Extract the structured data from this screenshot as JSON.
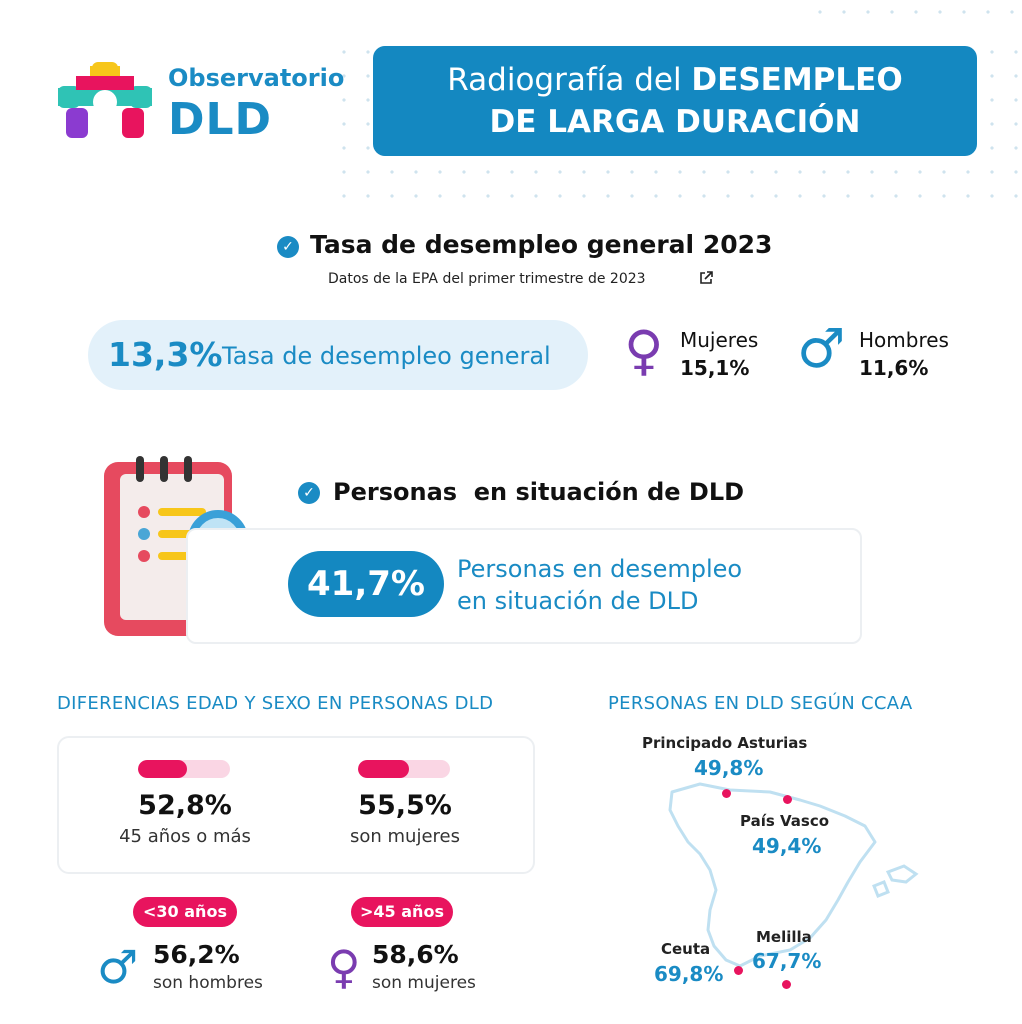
{
  "header": {
    "logo_line1": "Observatorio",
    "logo_line2": "DLD",
    "title_prefix": "Radiografía del ",
    "title_bold1": "DESEMPLEO",
    "title_line2": "DE LARGA DURACIÓN"
  },
  "general": {
    "heading": "Tasa de desempleo general 2023",
    "source": "Datos de la EPA del primer trimestre de 2023",
    "rate": "13,3%",
    "rate_label": "Tasa de desempleo general",
    "women_label": "Mujeres",
    "women_value": "15,1%",
    "men_label": "Hombres",
    "men_value": "11,6%"
  },
  "dld": {
    "heading": "Personas  en situación de DLD",
    "value": "41,7%",
    "label_line1": "Personas en desempleo",
    "label_line2": "en situación de DLD"
  },
  "age_sex": {
    "heading": "DIFERENCIAS EDAD Y SEXO EN PERSONAS DLD",
    "stats": [
      {
        "value": "52,8%",
        "label": "45 años o más",
        "fraction": 0.528
      },
      {
        "value": "55,5%",
        "label": "son mujeres",
        "fraction": 0.555
      }
    ],
    "groups": [
      {
        "tag": "<30 años",
        "value": "56,2%",
        "label": "son hombres",
        "icon": "male-icon"
      },
      {
        "tag": ">45 años",
        "value": "58,6%",
        "label": "son mujeres",
        "icon": "female-icon"
      }
    ]
  },
  "ccaa": {
    "heading": "PERSONAS EN DLD SEGÚN CCAA",
    "regions": [
      {
        "name": "Principado Asturias",
        "value": "49,8%"
      },
      {
        "name": "País Vasco",
        "value": "49,4%"
      },
      {
        "name": "Ceuta",
        "value": "69,8%"
      },
      {
        "name": "Melilla",
        "value": "67,7%"
      }
    ]
  },
  "colors": {
    "brand_blue": "#1488c1",
    "accent_pink": "#e8145e",
    "female_purple": "#7a3cb0"
  }
}
